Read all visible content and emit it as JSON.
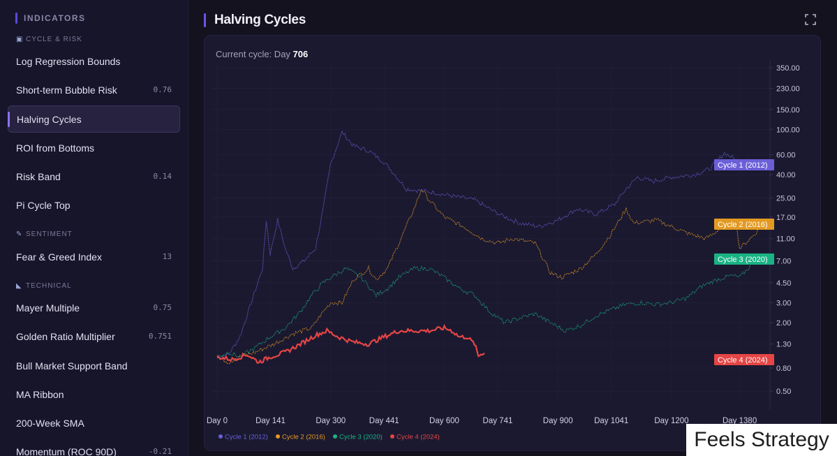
{
  "sidebar": {
    "header": "INDICATORS",
    "sections": [
      {
        "label": "CYCLE & RISK",
        "icon": "cycle-icon"
      },
      {
        "label": "SENTIMENT",
        "icon": "brush-icon"
      },
      {
        "label": "TECHNICAL",
        "icon": "triangle-ruler-icon"
      }
    ],
    "items": [
      {
        "label": "Log Regression Bounds",
        "value": ""
      },
      {
        "label": "Short-term Bubble Risk",
        "value": "0.76"
      },
      {
        "label": "Halving Cycles",
        "value": ""
      },
      {
        "label": "ROI from Bottoms",
        "value": ""
      },
      {
        "label": "Risk Band",
        "value": "0.14"
      },
      {
        "label": "Pi Cycle Top",
        "value": ""
      },
      {
        "label": "Fear & Greed Index",
        "value": "13"
      },
      {
        "label": "Mayer Multiple",
        "value": "0.75"
      },
      {
        "label": "Golden Ratio Multiplier",
        "value": "0.751"
      },
      {
        "label": "Bull Market Support Band",
        "value": ""
      },
      {
        "label": "MA Ribbon",
        "value": ""
      },
      {
        "label": "200-Week SMA",
        "value": ""
      },
      {
        "label": "Momentum (ROC 90D)",
        "value": "-0.21"
      }
    ]
  },
  "main": {
    "title": "Halving Cycles",
    "current_cycle_prefix": "Current cycle: Day",
    "current_cycle_day": "706"
  },
  "watermark": "Feels Strategy",
  "colors": {
    "cycle1": "#6b5fd8",
    "cycle2": "#e39a22",
    "cycle3": "#19b383",
    "cycle4": "#e64545"
  },
  "chart_data": {
    "type": "line",
    "title": "Halving Cycles",
    "xlabel": "",
    "ylabel": "",
    "y_scale": "log",
    "ylim": [
      0.4,
      380
    ],
    "xlim": [
      0,
      1460
    ],
    "x_ticks": [
      {
        "day": 0,
        "label": "Day 0"
      },
      {
        "day": 141,
        "label": "Day 141"
      },
      {
        "day": 300,
        "label": "Day 300"
      },
      {
        "day": 441,
        "label": "Day 441"
      },
      {
        "day": 600,
        "label": "Day 600"
      },
      {
        "day": 741,
        "label": "Day 741"
      },
      {
        "day": 900,
        "label": "Day 900"
      },
      {
        "day": 1041,
        "label": "Day 1041"
      },
      {
        "day": 1200,
        "label": "Day 1200"
      },
      {
        "day": 1380,
        "label": "Day 1380"
      }
    ],
    "y_ticks": [
      350,
      230,
      150,
      100,
      60,
      40,
      25,
      17,
      11,
      7,
      4.5,
      3,
      2,
      1.3,
      0.8,
      0.5
    ],
    "y_tick_labels": [
      "350.00",
      "230.00",
      "150.00",
      "100.00",
      "60.00",
      "40.00",
      "25.00",
      "17.00",
      "11.00",
      "7.00",
      "4.50",
      "3.00",
      "2.00",
      "1.30",
      "0.80",
      "0.50"
    ],
    "legend_position": "bottom-left",
    "series": [
      {
        "name": "Cycle 1 (2012)",
        "color": "#6b5fd8",
        "points": [
          [
            0,
            1
          ],
          [
            30,
            1.05
          ],
          [
            60,
            1.5
          ],
          [
            90,
            3
          ],
          [
            120,
            6
          ],
          [
            130,
            16
          ],
          [
            140,
            8
          ],
          [
            160,
            16
          ],
          [
            180,
            9
          ],
          [
            200,
            6
          ],
          [
            230,
            7
          ],
          [
            260,
            9
          ],
          [
            280,
            20
          ],
          [
            300,
            50
          ],
          [
            330,
            95
          ],
          [
            360,
            72
          ],
          [
            400,
            65
          ],
          [
            440,
            52
          ],
          [
            470,
            40
          ],
          [
            500,
            30
          ],
          [
            540,
            29
          ],
          [
            570,
            28
          ],
          [
            620,
            26
          ],
          [
            680,
            24
          ],
          [
            720,
            20
          ],
          [
            760,
            17
          ],
          [
            800,
            15
          ],
          [
            850,
            14
          ],
          [
            900,
            16
          ],
          [
            950,
            20
          ],
          [
            1000,
            18
          ],
          [
            1050,
            22
          ],
          [
            1080,
            30
          ],
          [
            1110,
            38
          ],
          [
            1150,
            35
          ],
          [
            1200,
            38
          ],
          [
            1260,
            40
          ],
          [
            1300,
            45
          ],
          [
            1340,
            62
          ],
          [
            1380,
            52
          ],
          [
            1400,
            55
          ]
        ]
      },
      {
        "name": "Cycle 2 (2016)",
        "color": "#e39a22",
        "points": [
          [
            0,
            1
          ],
          [
            30,
            0.9
          ],
          [
            60,
            1
          ],
          [
            100,
            1.1
          ],
          [
            150,
            1.3
          ],
          [
            200,
            1.6
          ],
          [
            250,
            1.8
          ],
          [
            280,
            2.5
          ],
          [
            300,
            3
          ],
          [
            330,
            3
          ],
          [
            360,
            4.8
          ],
          [
            400,
            6
          ],
          [
            420,
            4.8
          ],
          [
            450,
            6
          ],
          [
            480,
            10
          ],
          [
            520,
            20
          ],
          [
            540,
            30
          ],
          [
            560,
            24
          ],
          [
            600,
            17
          ],
          [
            650,
            14
          ],
          [
            700,
            11
          ],
          [
            740,
            10
          ],
          [
            780,
            11
          ],
          [
            840,
            10
          ],
          [
            880,
            5.5
          ],
          [
            910,
            5
          ],
          [
            960,
            6
          ],
          [
            1000,
            8
          ],
          [
            1040,
            12
          ],
          [
            1080,
            20
          ],
          [
            1100,
            15
          ],
          [
            1160,
            16
          ],
          [
            1200,
            14
          ],
          [
            1250,
            12
          ],
          [
            1290,
            11
          ],
          [
            1310,
            12
          ],
          [
            1350,
            16
          ],
          [
            1370,
            15
          ],
          [
            1380,
            9
          ],
          [
            1420,
            12
          ],
          [
            1440,
            15
          ]
        ]
      },
      {
        "name": "Cycle 3 (2020)",
        "color": "#19b383",
        "points": [
          [
            0,
            1
          ],
          [
            30,
            1.1
          ],
          [
            60,
            1
          ],
          [
            100,
            1.2
          ],
          [
            140,
            1.5
          ],
          [
            180,
            1.8
          ],
          [
            220,
            2.5
          ],
          [
            250,
            3.5
          ],
          [
            280,
            4.5
          ],
          [
            300,
            5
          ],
          [
            340,
            6
          ],
          [
            380,
            5
          ],
          [
            420,
            3.5
          ],
          [
            450,
            4
          ],
          [
            480,
            5
          ],
          [
            520,
            6
          ],
          [
            560,
            6
          ],
          [
            600,
            5
          ],
          [
            640,
            4
          ],
          [
            680,
            3.5
          ],
          [
            720,
            2.5
          ],
          [
            760,
            2
          ],
          [
            800,
            2.2
          ],
          [
            840,
            2.4
          ],
          [
            880,
            2
          ],
          [
            920,
            1.7
          ],
          [
            960,
            1.9
          ],
          [
            1000,
            2.3
          ],
          [
            1040,
            2.6
          ],
          [
            1080,
            2.9
          ],
          [
            1120,
            3
          ],
          [
            1160,
            2.9
          ],
          [
            1200,
            3
          ],
          [
            1240,
            3.3
          ],
          [
            1280,
            4.2
          ],
          [
            1320,
            4.8
          ],
          [
            1360,
            5.2
          ],
          [
            1380,
            5
          ],
          [
            1420,
            7
          ],
          [
            1450,
            8
          ]
        ]
      },
      {
        "name": "Cycle 4 (2024)",
        "color": "#e64545",
        "points": [
          [
            0,
            1
          ],
          [
            40,
            0.95
          ],
          [
            80,
            1.05
          ],
          [
            110,
            0.9
          ],
          [
            140,
            1
          ],
          [
            180,
            1.1
          ],
          [
            220,
            1.3
          ],
          [
            260,
            1.55
          ],
          [
            290,
            1.7
          ],
          [
            320,
            1.5
          ],
          [
            360,
            1.35
          ],
          [
            400,
            1.3
          ],
          [
            440,
            1.5
          ],
          [
            480,
            1.7
          ],
          [
            520,
            1.7
          ],
          [
            560,
            1.7
          ],
          [
            600,
            1.8
          ],
          [
            620,
            1.7
          ],
          [
            640,
            1.5
          ],
          [
            660,
            1.5
          ],
          [
            680,
            1.3
          ],
          [
            690,
            1.02
          ],
          [
            700,
            1.08
          ],
          [
            706,
            1.08
          ]
        ]
      }
    ],
    "end_labels": [
      "Cycle 1 (2012)",
      "Cycle 2 (2016)",
      "Cycle 3 (2020)",
      "Cycle 4 (2024)"
    ],
    "legend": [
      "Cycle 1 (2012)",
      "Cycle 2 (2016)",
      "Cycle 3 (2020)",
      "Cycle 4 (2024)"
    ]
  }
}
